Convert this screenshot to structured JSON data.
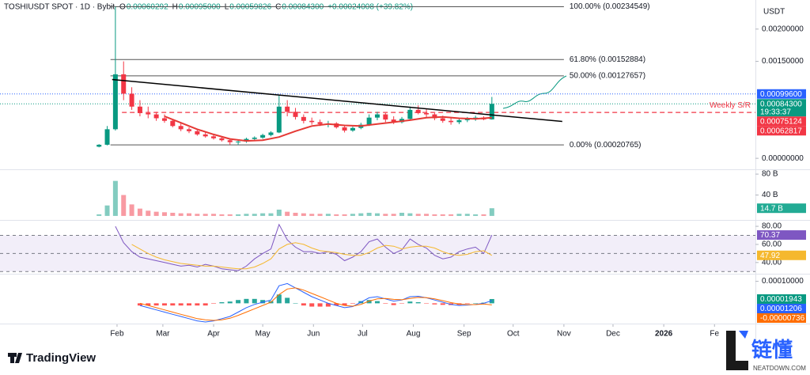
{
  "chart_data": [
    {
      "type": "candlestick",
      "header": {
        "symbol": "TOSHIUSDT SPOT · 1D · Bybit",
        "ohlc": [
          {
            "key": "O",
            "value": "0.00060292"
          },
          {
            "key": "H",
            "value": "0.00095000"
          },
          {
            "key": "L",
            "value": "0.00059826"
          },
          {
            "key": "C",
            "value": "0.00084300"
          }
        ],
        "change": "+0.00024008 (+39.82%)"
      },
      "currency": "USDT",
      "up_color": "#089981",
      "down_color": "#f23645",
      "x": [
        20,
        25,
        30,
        35,
        40,
        45,
        50,
        55,
        60,
        65,
        70,
        75,
        80,
        85,
        90,
        95,
        100,
        105,
        110,
        115,
        120,
        125,
        130,
        135,
        140,
        145,
        150,
        155,
        160,
        165,
        170,
        175,
        180,
        185,
        190,
        195,
        200,
        205,
        210,
        215,
        220,
        225,
        230,
        235,
        240,
        245,
        250,
        255,
        260
      ],
      "open": [
        0.00018,
        0.00021,
        0.00045,
        0.0013,
        0.001,
        0.0008,
        0.0007,
        0.00068,
        0.00062,
        0.00058,
        0.0005,
        0.00045,
        0.00042,
        0.00037,
        0.00034,
        0.00031,
        0.00028,
        0.00025,
        0.00026,
        0.0003,
        0.00032,
        0.00036,
        0.0004,
        0.0008,
        0.00072,
        0.00064,
        0.00058,
        0.00056,
        0.00053,
        0.00054,
        0.00048,
        0.00043,
        0.00047,
        0.00052,
        0.00063,
        0.00068,
        0.0006,
        0.00056,
        0.00061,
        0.00075,
        0.0007,
        0.00068,
        0.00062,
        0.00058,
        0.00056,
        0.00059,
        0.00061,
        0.00063,
        0.00060292
      ],
      "high": [
        0.00022,
        0.0005,
        0.00234549,
        0.0015,
        0.0011,
        0.0009,
        0.0008,
        0.00072,
        0.00068,
        0.0006,
        0.00054,
        0.00048,
        0.00044,
        0.0004,
        0.00036,
        0.00033,
        0.0003,
        0.00028,
        0.00032,
        0.00034,
        0.00038,
        0.00042,
        0.00098,
        0.0009,
        0.00078,
        0.00068,
        0.00063,
        0.0006,
        0.00058,
        0.00056,
        0.0005,
        0.00049,
        0.00055,
        0.00068,
        0.00072,
        0.0007,
        0.00065,
        0.00064,
        0.0008,
        0.00082,
        0.00076,
        0.0007,
        0.00066,
        0.00062,
        0.00061,
        0.00064,
        0.00066,
        0.00065,
        0.00095
      ],
      "low": [
        0.00017,
        0.0002,
        0.00043,
        0.0009,
        0.00075,
        0.00065,
        0.00062,
        0.00058,
        0.00055,
        0.00048,
        0.00042,
        0.00039,
        0.00035,
        0.00032,
        0.00029,
        0.00026,
        0.00020765,
        0.00021,
        0.00024,
        0.00027,
        0.0003,
        0.00034,
        0.00039,
        0.00065,
        0.0006,
        0.00054,
        0.00052,
        0.0005,
        0.00048,
        0.00046,
        0.0004,
        0.00041,
        0.00045,
        0.0005,
        0.00059,
        0.00056,
        0.00053,
        0.00054,
        0.00059,
        0.00068,
        0.00063,
        0.00059,
        0.00055,
        0.00052,
        0.00053,
        0.00056,
        0.00058,
        0.00059,
        0.00059826
      ],
      "close": [
        0.00021,
        0.00045,
        0.0013,
        0.001,
        0.0008,
        0.0007,
        0.00068,
        0.00062,
        0.00058,
        0.0005,
        0.00045,
        0.00042,
        0.00037,
        0.00034,
        0.00031,
        0.00028,
        0.00025,
        0.00026,
        0.0003,
        0.00032,
        0.00036,
        0.0004,
        0.0008,
        0.00072,
        0.00064,
        0.00058,
        0.00056,
        0.00053,
        0.00054,
        0.00048,
        0.00043,
        0.00047,
        0.00052,
        0.00063,
        0.00068,
        0.0006,
        0.00056,
        0.00061,
        0.00075,
        0.0007,
        0.00068,
        0.00062,
        0.00058,
        0.00056,
        0.00059,
        0.00061,
        0.00063,
        0.00060292,
        0.000843
      ],
      "ma": {
        "color": "#e53935",
        "x": [
          60,
          70,
          80,
          90,
          100,
          110,
          120,
          130,
          140,
          150,
          160,
          170,
          180,
          190,
          200,
          210,
          220,
          230,
          240,
          250,
          260
        ],
        "values": [
          0.00065,
          0.00055,
          0.00045,
          0.00037,
          0.0003,
          0.00027,
          0.00028,
          0.00033,
          0.00042,
          0.0005,
          0.00053,
          0.00051,
          0.0005,
          0.00053,
          0.00056,
          0.00059,
          0.00063,
          0.00064,
          0.00062,
          0.00061,
          0.00062817
        ]
      },
      "fib": {
        "x": [
          27,
          304
        ],
        "color": "#555555",
        "levels": [
          {
            "value": 0.00234549,
            "label": "100.00% (0.00234549)"
          },
          {
            "value": 0.00152884,
            "label": "61.80% (0.00152884)"
          },
          {
            "value": 0.00127657,
            "label": "50.00% (0.00127657)"
          },
          {
            "value": 0.00020765,
            "label": "0.00% (0.00020765)"
          }
        ]
      },
      "trendline": {
        "x": [
          28,
          303
        ],
        "values": [
          0.00122,
          0.00057
        ],
        "color": "#000000"
      },
      "support": {
        "label": "Weekly S/R",
        "value": 0.00071,
        "x": 34,
        "color": "#f23645"
      },
      "price_labels": [
        {
          "value": 0.000996,
          "label": "0.00099600",
          "color": "#2962ff",
          "line": "dotted"
        },
        {
          "value": 0.000843,
          "label": "0.00084300",
          "sub": "19:33:37",
          "color": "#089981",
          "line": "dotted"
        },
        {
          "value": 0.00075124,
          "label": "0.00075124",
          "color": "#f23645"
        },
        {
          "value": 0.00062817,
          "label": "0.00062817",
          "color": "#f23645"
        }
      ],
      "ylim": [
        -0.00017,
        0.00245
      ],
      "yticks": [
        {
          "value": 0,
          "label": "0.00000000"
        },
        {
          "value": 0.0015,
          "label": "0.00150000"
        },
        {
          "value": 0.002,
          "label": "0.00200000"
        }
      ],
      "xlim": [
        -40.5,
        421
      ],
      "xticks": [
        {
          "value": 31,
          "label": "Feb"
        },
        {
          "value": 59,
          "label": "Mar"
        },
        {
          "value": 90,
          "label": "Apr"
        },
        {
          "value": 120,
          "label": "May"
        },
        {
          "value": 151,
          "label": "Jun"
        },
        {
          "value": 181,
          "label": "Jul"
        },
        {
          "value": 212,
          "label": "Aug"
        },
        {
          "value": 243,
          "label": "Sep"
        },
        {
          "value": 273,
          "label": "Oct"
        },
        {
          "value": 304,
          "label": "Nov"
        },
        {
          "value": 334,
          "label": "Dec"
        },
        {
          "value": 365,
          "label": "2026",
          "bold": true
        },
        {
          "value": 396,
          "label": "Fe"
        }
      ]
    },
    {
      "type": "bar",
      "values": [
        3,
        20,
        67,
        40,
        22,
        14,
        10,
        8,
        7,
        6,
        5,
        5,
        4,
        4,
        4,
        3,
        3,
        3,
        4,
        4,
        5,
        5,
        12,
        8,
        6,
        5,
        4,
        4,
        4,
        3,
        3,
        4,
        5,
        6,
        5,
        4,
        4,
        6,
        5,
        4,
        4,
        3,
        3,
        3,
        4,
        4,
        3,
        3,
        14.7
      ],
      "last_label": "14.7 B",
      "label_color": "#22ab94",
      "ylim": [
        -7.7,
        89.2
      ],
      "yticks": [
        {
          "value": 80,
          "label": "80 B"
        },
        {
          "value": 40,
          "label": "40 B"
        }
      ]
    },
    {
      "type": "line",
      "series": [
        {
          "color": "#7e57c2",
          "last_label": "70.37",
          "values": [
            null,
            null,
            80,
            62,
            52,
            46,
            44,
            42,
            40,
            38,
            36,
            37,
            35,
            38,
            36,
            33,
            32,
            31,
            36,
            44,
            50,
            55,
            82,
            65,
            57,
            52,
            52,
            50,
            52,
            49,
            42,
            46,
            52,
            63,
            66,
            57,
            50,
            54,
            66,
            60,
            56,
            48,
            44,
            46,
            52,
            55,
            57,
            50,
            70.37
          ]
        },
        {
          "color": "#f5b82e",
          "last_label": "47.92",
          "values": [
            null,
            null,
            null,
            null,
            60,
            55,
            50,
            46,
            43,
            41,
            39,
            38,
            37,
            36,
            36,
            35,
            34,
            33,
            33,
            35,
            39,
            44,
            55,
            60,
            62,
            60,
            56,
            53,
            52,
            51,
            49,
            48,
            48,
            51,
            56,
            59,
            58,
            55,
            57,
            58,
            58,
            56,
            52,
            49,
            48,
            49,
            52,
            53,
            47.92
          ]
        }
      ],
      "band": [
        30,
        70
      ],
      "levels": [
        70,
        50,
        30
      ],
      "band_color": "#7e57c2",
      "ylim": [
        27.6,
        85.3
      ],
      "yticks": [
        {
          "value": 80,
          "label": "80.00"
        },
        {
          "value": 60,
          "label": "60.00"
        },
        {
          "value": 40,
          "label": "40.00"
        }
      ]
    },
    {
      "type": "line",
      "histogram": {
        "up_color": "#26a69a",
        "down_color": "#ff5252",
        "label_color": "#089981",
        "last_label": "0.00001943",
        "values": [
          null,
          null,
          null,
          null,
          null,
          -1e-05,
          -1e-05,
          -1e-05,
          -1e-05,
          -1e-05,
          -1e-05,
          -1e-05,
          -1e-05,
          -1e-05,
          -2e-06,
          5e-06,
          8e-06,
          1.5e-05,
          2e-05,
          2e-05,
          1.5e-05,
          1e-05,
          4e-05,
          2.5e-05,
          0,
          -1e-05,
          -1.5e-05,
          -1.5e-05,
          -1.5e-05,
          -1e-05,
          -1e-05,
          -2e-06,
          1e-05,
          1.5e-05,
          1e-05,
          -2e-06,
          -8e-06,
          -1e-06,
          8e-06,
          5e-06,
          -1e-06,
          -5e-06,
          -7e-06,
          -8e-06,
          -7e-06,
          -2e-06,
          1e-06,
          3e-06,
          1.943e-05
        ]
      },
      "series": [
        {
          "color": "#2962ff",
          "last_label": "0.00001206",
          "values": [
            null,
            null,
            null,
            null,
            null,
            -1e-05,
            -2e-05,
            -3e-05,
            -4e-05,
            -5e-05,
            -6e-05,
            -7e-05,
            -8e-05,
            -8.5e-05,
            -8e-05,
            -7e-05,
            -6e-05,
            -4e-05,
            -2e-05,
            -5e-06,
            5e-06,
            1.5e-05,
            8e-05,
            9e-05,
            7e-05,
            5e-05,
            3e-05,
            1.5e-05,
            0,
            -1e-05,
            -2e-05,
            -1.5e-05,
            5e-06,
            2.5e-05,
            3e-05,
            2e-05,
            1e-05,
            1.5e-05,
            3e-05,
            3.2e-05,
            2.5e-05,
            1.5e-05,
            5e-06,
            -5e-06,
            -1e-05,
            -8e-06,
            -5e-06,
            0,
            1.206e-05
          ]
        },
        {
          "color": "#ff6d00",
          "last_label": "-0.00000736",
          "values": [
            null,
            null,
            null,
            null,
            null,
            0,
            -1e-05,
            -2e-05,
            -3e-05,
            -4e-05,
            -5e-05,
            -6e-05,
            -7e-05,
            -7.5e-05,
            -7.8e-05,
            -7.5e-05,
            -6.8e-05,
            -5.5e-05,
            -4e-05,
            -2.5e-05,
            -1e-05,
            5e-06,
            4e-05,
            6.5e-05,
            7e-05,
            6e-05,
            4.5e-05,
            3e-05,
            1.5e-05,
            0,
            -1e-05,
            -1.3e-05,
            -5e-06,
            1e-05,
            2e-05,
            2.2e-05,
            1.8e-05,
            1.6e-05,
            2.2e-05,
            2.7e-05,
            2.6e-05,
            2e-05,
            1.2e-05,
            3e-06,
            -3e-06,
            -6e-06,
            -6e-06,
            -3e-06,
            -7.36e-06
          ]
        }
      ],
      "ylim": [
        -9.23e-05,
        0.000131
      ],
      "yticks": [
        {
          "value": 0.0001,
          "label": "0.00010000"
        }
      ]
    }
  ],
  "footer": {
    "brand": "TradingView",
    "watermark": "链懂",
    "watermark_sub": "NEATDOWN.COM"
  }
}
